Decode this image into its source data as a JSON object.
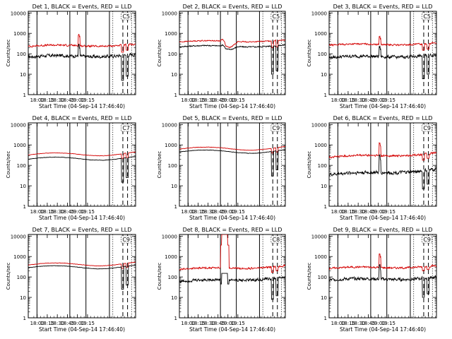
{
  "colors": {
    "events": "#000000",
    "lld": "#d40000",
    "axis": "#000000"
  },
  "chart_data": [
    {
      "type": "line",
      "title": "Det 1, BLACK = Events, RED = LLD",
      "detector": "1",
      "xlabel": "Start Time (04-Sep-14 17:46:40)",
      "ylabel": "Counts/sec",
      "x_ticks": [
        "18:00",
        "18:15",
        "18:30",
        "18:45",
        "19:00",
        "19:15"
      ],
      "y_ticks": [
        "1",
        "10",
        "100",
        "1000",
        "10000"
      ],
      "xlim_minutes": [
        0,
        160
      ],
      "ylim": [
        1,
        12000
      ],
      "y_scale": "log",
      "corner_label": "C5",
      "series": [
        {
          "name": "Events",
          "base": 70,
          "drift": 0.25,
          "noise": 0.16,
          "spike": [
            [
              75,
              280
            ],
            [
              76,
              180
            ]
          ],
          "dips": [
            [
              139,
              142,
              5
            ],
            [
              146,
              149,
              8
            ]
          ]
        },
        {
          "name": "LLD",
          "base": 230,
          "drift": 0.2,
          "noise": 0.09,
          "spike": [
            [
              75,
              900
            ],
            [
              76,
              700
            ]
          ],
          "dips": [
            [
              139,
              142,
              120
            ],
            [
              146,
              149,
              150
            ]
          ]
        }
      ],
      "solid_lines_minutes": [
        13,
        62,
        86,
        121
      ],
      "dashed_lines_minutes": [
        141,
        148
      ],
      "dotted_lines_minutes": [
        126,
        154
      ]
    },
    {
      "type": "line",
      "title": "Det 2, BLACK = Events, RED = LLD",
      "detector": "2",
      "xlabel": "Start Time (04-Sep-14 17:46:40)",
      "ylabel": "Counts/sec",
      "x_ticks": [
        "18:00",
        "18:15",
        "18:30",
        "18:45",
        "19:00",
        "19:15"
      ],
      "y_ticks": [
        "1",
        "10",
        "100",
        "1000",
        "10000"
      ],
      "xlim_minutes": [
        0,
        160
      ],
      "ylim": [
        1,
        12000
      ],
      "y_scale": "log",
      "corner_label": "C5",
      "series": [
        {
          "name": "Events",
          "base": 220,
          "drift": 0.15,
          "noise": 0.06,
          "wave": [
            [
              62,
              88,
              0.3
            ]
          ],
          "dips": [
            [
              139,
              142,
              10
            ],
            [
              146,
              149,
              15
            ]
          ]
        },
        {
          "name": "LLD",
          "base": 380,
          "drift": 0.2,
          "noise": 0.05,
          "wave": [
            [
              62,
              88,
              0.5
            ]
          ],
          "dips": [
            [
              139,
              142,
              200
            ],
            [
              146,
              149,
              220
            ]
          ]
        }
      ],
      "solid_lines_minutes": [
        13,
        62,
        86,
        121
      ],
      "dashed_lines_minutes": [
        141,
        148
      ],
      "dotted_lines_minutes": [
        126,
        154
      ]
    },
    {
      "type": "line",
      "title": "Det 3, BLACK = Events, RED = LLD",
      "detector": "3",
      "xlabel": "Start Time (04-Sep-14 17:46:40)",
      "ylabel": "Counts/sec",
      "x_ticks": [
        "18:00",
        "18:15",
        "18:30",
        "18:45",
        "19:00",
        "19:15"
      ],
      "y_ticks": [
        "1",
        "10",
        "100",
        "1000",
        "10000"
      ],
      "xlim_minutes": [
        0,
        160
      ],
      "ylim": [
        1,
        12000
      ],
      "y_scale": "log",
      "corner_label": "C5",
      "series": [
        {
          "name": "Events",
          "base": 65,
          "drift": 0.3,
          "noise": 0.15,
          "spike": [
            [
              75,
              220
            ],
            [
              76,
              160
            ]
          ],
          "dips": [
            [
              139,
              142,
              6
            ],
            [
              146,
              149,
              10
            ]
          ]
        },
        {
          "name": "LLD",
          "base": 260,
          "drift": 0.25,
          "noise": 0.08,
          "spike": [
            [
              75,
              700
            ],
            [
              76,
              550
            ]
          ],
          "dips": [
            [
              139,
              142,
              150
            ],
            [
              146,
              149,
              170
            ]
          ]
        }
      ],
      "solid_lines_minutes": [
        13,
        62,
        86,
        121
      ],
      "dashed_lines_minutes": [
        141,
        148
      ],
      "dotted_lines_minutes": [
        126,
        154
      ]
    },
    {
      "type": "line",
      "title": "Det 4, BLACK = Events, RED = LLD",
      "detector": "4",
      "xlabel": "Start Time (04-Sep-14 17:46:40)",
      "ylabel": "Counts/sec",
      "x_ticks": [
        "18:00",
        "18:15",
        "18:30",
        "18:45",
        "19:00",
        "19:15"
      ],
      "y_ticks": [
        "1",
        "10",
        "100",
        "1000",
        "10000"
      ],
      "xlim_minutes": [
        0,
        160
      ],
      "ylim": [
        1,
        12000
      ],
      "y_scale": "log",
      "corner_label": "C7",
      "series": [
        {
          "name": "Events",
          "base": 200,
          "drift": 0.2,
          "noise": 0.02,
          "smooth": true,
          "dips": [
            [
              139,
              142,
              15
            ],
            [
              146,
              149,
              25
            ]
          ]
        },
        {
          "name": "LLD",
          "base": 320,
          "drift": 0.25,
          "noise": 0.02,
          "smooth": true,
          "dips": [
            [
              139,
              142,
              220
            ],
            [
              146,
              149,
              240
            ]
          ]
        }
      ],
      "solid_lines_minutes": [
        13,
        62,
        86,
        121
      ],
      "dashed_lines_minutes": [
        141,
        148
      ],
      "dotted_lines_minutes": [
        126,
        154
      ]
    },
    {
      "type": "line",
      "title": "Det 5, BLACK = Events, RED = LLD",
      "detector": "5",
      "xlabel": "Start Time (04-Sep-14 17:46:40)",
      "ylabel": "Counts/sec",
      "x_ticks": [
        "18:00",
        "18:15",
        "18:30",
        "18:45",
        "19:00",
        "19:15"
      ],
      "y_ticks": [
        "1",
        "10",
        "100",
        "1000",
        "10000"
      ],
      "xlim_minutes": [
        0,
        160
      ],
      "ylim": [
        1,
        12000
      ],
      "y_scale": "log",
      "corner_label": "C9",
      "series": [
        {
          "name": "Events",
          "base": 450,
          "drift": 0.15,
          "noise": 0.02,
          "smooth": true,
          "dips": [
            [
              139,
              142,
              30
            ],
            [
              146,
              149,
              60
            ]
          ]
        },
        {
          "name": "LLD",
          "base": 620,
          "drift": 0.2,
          "noise": 0.02,
          "smooth": true,
          "dips": [
            [
              139,
              142,
              400
            ],
            [
              146,
              149,
              450
            ]
          ]
        }
      ],
      "solid_lines_minutes": [
        13,
        62,
        86,
        121
      ],
      "dashed_lines_minutes": [
        141,
        148
      ],
      "dotted_lines_minutes": [
        126,
        154
      ]
    },
    {
      "type": "line",
      "title": "Det 6, BLACK = Events, RED = LLD",
      "detector": "6",
      "xlabel": "Start Time (04-Sep-14 17:46:40)",
      "ylabel": "Counts/sec",
      "x_ticks": [
        "18:00",
        "18:15",
        "18:30",
        "18:45",
        "19:00",
        "19:15"
      ],
      "y_ticks": [
        "1",
        "10",
        "100",
        "1000",
        "10000"
      ],
      "xlim_minutes": [
        0,
        160
      ],
      "ylim": [
        1,
        12000
      ],
      "y_scale": "log",
      "corner_label": "C9",
      "series": [
        {
          "name": "Events",
          "base": 35,
          "drift": 0.7,
          "noise": 0.16,
          "spike": [
            [
              75,
              280
            ],
            [
              76,
              180
            ]
          ],
          "dips": [
            [
              139,
              142,
              7
            ],
            [
              146,
              149,
              12
            ]
          ]
        },
        {
          "name": "LLD",
          "base": 250,
          "drift": 0.5,
          "noise": 0.1,
          "spike": [
            [
              75,
              1200
            ],
            [
              76,
              900
            ]
          ],
          "dips": [
            [
              139,
              142,
              180
            ],
            [
              146,
              149,
              220
            ]
          ]
        }
      ],
      "solid_lines_minutes": [
        13,
        62,
        86,
        121
      ],
      "dashed_lines_minutes": [
        141,
        148
      ],
      "dotted_lines_minutes": [
        126,
        154
      ]
    },
    {
      "type": "line",
      "title": "Det 7, BLACK = Events, RED = LLD",
      "detector": "7",
      "xlabel": "Start Time (04-Sep-14 17:46:40)",
      "ylabel": "Counts/sec",
      "x_ticks": [
        "18:00",
        "18:15",
        "18:30",
        "18:45",
        "19:00",
        "19:15"
      ],
      "y_ticks": [
        "1",
        "10",
        "100",
        "1000",
        "10000"
      ],
      "xlim_minutes": [
        0,
        160
      ],
      "ylim": [
        1,
        12000
      ],
      "y_scale": "log",
      "corner_label": "C9",
      "series": [
        {
          "name": "Events",
          "base": 280,
          "drift": 0.2,
          "noise": 0.02,
          "smooth": true,
          "dips": [
            [
              139,
              142,
              25
            ],
            [
              146,
              149,
              40
            ]
          ]
        },
        {
          "name": "LLD",
          "base": 380,
          "drift": 0.25,
          "noise": 0.02,
          "smooth": true,
          "dips": [
            [
              139,
              142,
              260
            ],
            [
              146,
              149,
              300
            ]
          ]
        }
      ],
      "solid_lines_minutes": [
        13,
        62,
        86,
        121
      ],
      "dashed_lines_minutes": [
        141,
        148
      ],
      "dotted_lines_minutes": [
        126,
        154
      ]
    },
    {
      "type": "line",
      "title": "Det 8, BLACK = Events, RED = LLD",
      "detector": "8",
      "xlabel": "Start Time (04-Sep-14 17:46:40)",
      "ylabel": "Counts/sec",
      "x_ticks": [
        "18:00",
        "18:15",
        "18:30",
        "18:45",
        "19:00",
        "19:15"
      ],
      "y_ticks": [
        "1",
        "10",
        "100",
        "1000",
        "10000"
      ],
      "xlim_minutes": [
        0,
        160
      ],
      "ylim": [
        1,
        12000
      ],
      "y_scale": "log",
      "corner_label": "C8",
      "series": [
        {
          "name": "Events",
          "base": 60,
          "drift": 0.5,
          "noise": 0.14,
          "saturate": [
            [
              62,
              75,
              150
            ]
          ],
          "dips": [
            [
              139,
              142,
              8
            ],
            [
              146,
              149,
              12
            ]
          ]
        },
        {
          "name": "LLD",
          "base": 230,
          "drift": 0.45,
          "noise": 0.09,
          "saturate": [
            [
              62,
              75,
              12000
            ]
          ],
          "dips": [
            [
              139,
              142,
              170
            ],
            [
              146,
              149,
              200
            ]
          ]
        }
      ],
      "solid_lines_minutes": [
        13,
        62,
        86,
        121
      ],
      "dashed_lines_minutes": [
        141,
        148
      ],
      "dotted_lines_minutes": [
        126,
        154
      ]
    },
    {
      "type": "line",
      "title": "Det 9, BLACK = Events, RED = LLD",
      "detector": "9",
      "xlabel": "Start Time (04-Sep-14 17:46:40)",
      "ylabel": "Counts/sec",
      "x_ticks": [
        "18:00",
        "18:15",
        "18:30",
        "18:45",
        "19:00",
        "19:15"
      ],
      "y_ticks": [
        "1",
        "10",
        "100",
        "1000",
        "10000"
      ],
      "xlim_minutes": [
        0,
        160
      ],
      "ylim": [
        1,
        12000
      ],
      "y_scale": "log",
      "corner_label": "C9",
      "series": [
        {
          "name": "Events",
          "base": 70,
          "drift": 0.3,
          "noise": 0.15,
          "spike": [
            [
              75,
              350
            ],
            [
              76,
              220
            ]
          ],
          "dips": [
            [
              139,
              142,
              10
            ],
            [
              146,
              149,
              15
            ]
          ]
        },
        {
          "name": "LLD",
          "base": 260,
          "drift": 0.3,
          "noise": 0.09,
          "spike": [
            [
              75,
              1300
            ],
            [
              76,
              900
            ]
          ],
          "dips": [
            [
              139,
              142,
              200
            ],
            [
              146,
              149,
              230
            ]
          ]
        }
      ],
      "solid_lines_minutes": [
        13,
        62,
        86,
        121
      ],
      "dashed_lines_minutes": [
        141,
        148
      ],
      "dotted_lines_minutes": [
        126,
        154
      ]
    }
  ]
}
